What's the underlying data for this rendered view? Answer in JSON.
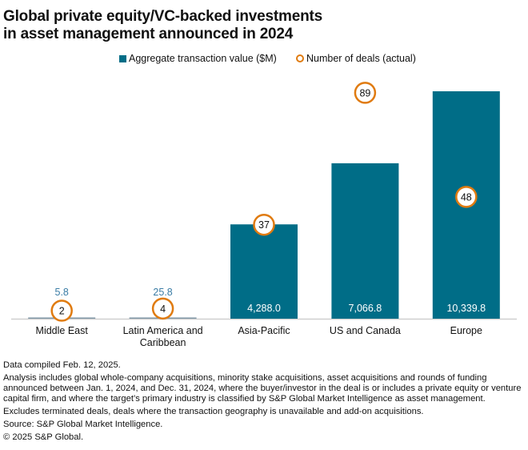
{
  "title_lines": [
    "Global private equity/VC-backed investments",
    "in asset management announced in 2024"
  ],
  "legend": [
    {
      "label": "Aggregate transaction value ($M)",
      "marker": "square",
      "color": "#006d87"
    },
    {
      "label": "Number of deals (actual)",
      "marker": "ring",
      "color": "#e07b10"
    }
  ],
  "chart_data": {
    "type": "bar",
    "title": "Global private equity/VC-backed investments in asset management announced in 2024",
    "categories": [
      "Middle East",
      "Latin America and Caribbean",
      "Asia-Pacific",
      "US and Canada",
      "Europe"
    ],
    "category_label_lines": [
      [
        "Middle East"
      ],
      [
        "Latin America and",
        "Caribbean"
      ],
      [
        "Asia-Pacific"
      ],
      [
        "US and Canada"
      ],
      [
        "Europe"
      ]
    ],
    "series": [
      {
        "name": "Aggregate transaction value ($M)",
        "type": "bar",
        "color": "#006d87",
        "values": [
          5.8,
          25.8,
          4288.0,
          7066.8,
          10339.8
        ],
        "labels": [
          "5.8",
          "25.8",
          "4,288.0",
          "7,066.8",
          "10,339.8"
        ]
      },
      {
        "name": "Number of deals (actual)",
        "type": "point",
        "color": "#e07b10",
        "values": [
          2,
          4,
          37,
          89,
          48
        ],
        "labels": [
          "2",
          "4",
          "37",
          "89",
          "48"
        ]
      }
    ],
    "xlabel": "",
    "ylabel": "",
    "ylim": [
      0,
      10339.8
    ],
    "grid": false,
    "legend_position": "top-center"
  },
  "notes": [
    "Data compiled Feb. 12, 2025.",
    "Analysis includes global whole-company acquisitions, minority stake acquisitions, asset acquisitions and rounds of funding announced between Jan. 1, 2024, and Dec. 31, 2024, where the buyer/investor in the deal is or includes a private equity or venture capital firm, and where the target’s primary industry is classified by S&P Global Market Intelligence as asset management.",
    "Excludes terminated deals,  deals where the transaction geography is unavailable and add-on acquisitions.",
    "Source: S&P Global Market Intelligence.",
    "© 2025 S&P Global."
  ]
}
